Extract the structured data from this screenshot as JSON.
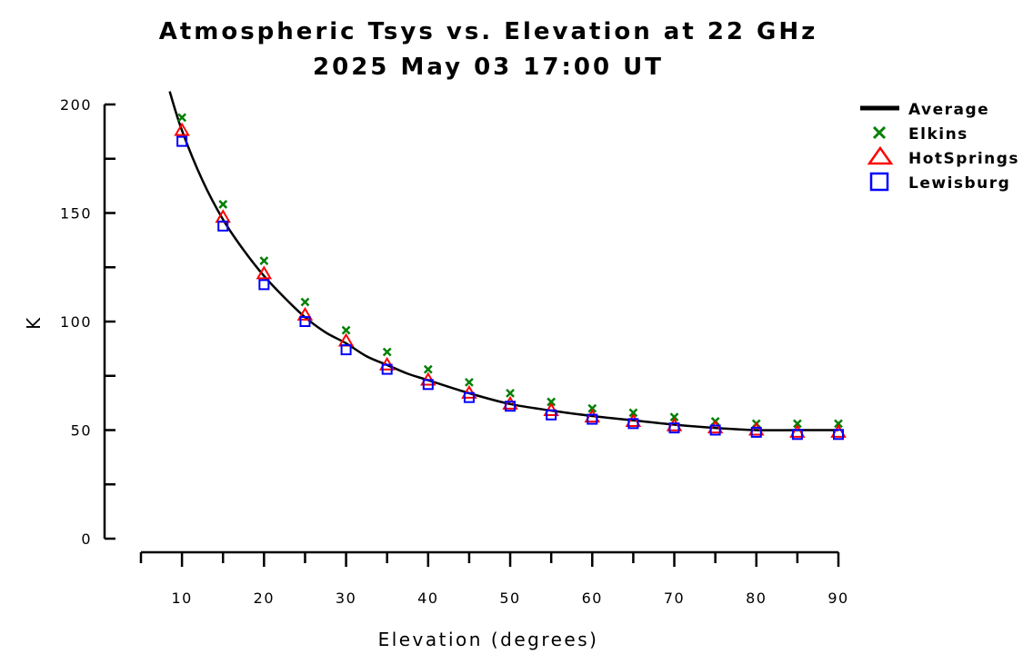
{
  "chart_data": {
    "type": "scatter",
    "title": "Atmospheric Tsys vs. Elevation at 22 GHz",
    "subtitle": "2025 May 03 17:00 UT",
    "xlabel": "Elevation (degrees)",
    "ylabel": "K",
    "xlim": [
      5,
      90
    ],
    "ylim": [
      0,
      200
    ],
    "xticks": [
      10,
      20,
      30,
      40,
      50,
      60,
      70,
      80,
      90
    ],
    "xtick_labels": [
      "10",
      "20",
      "30",
      "40",
      "50",
      "60",
      "70",
      "80",
      "90"
    ],
    "yticks": [
      0,
      50,
      100,
      150,
      200
    ],
    "ytick_labels": [
      "0",
      "50",
      "100",
      "150",
      "200"
    ],
    "grid": false,
    "legend_position": "top-right",
    "x": [
      10,
      15,
      20,
      25,
      30,
      35,
      40,
      45,
      50,
      55,
      60,
      65,
      70,
      75,
      80,
      85,
      90
    ],
    "series": [
      {
        "name": "Average",
        "style": "line",
        "color": "#000000",
        "x": [
          8.5,
          10,
          12.5,
          15,
          17.5,
          20,
          22.5,
          25,
          27.5,
          30,
          32.5,
          35,
          37.5,
          40,
          45,
          50,
          55,
          60,
          65,
          70,
          75,
          80,
          85,
          90
        ],
        "values": [
          206,
          188,
          165,
          147,
          133,
          121,
          111,
          102,
          95,
          90,
          84,
          80,
          76,
          73,
          67,
          62,
          59,
          56.5,
          54.5,
          52.5,
          51,
          50,
          50,
          50
        ]
      },
      {
        "name": "Elkins",
        "style": "x-marker",
        "color": "#008000",
        "values": [
          194,
          154,
          128,
          109,
          96,
          86,
          78,
          72,
          67,
          63,
          60,
          58,
          56,
          54,
          53,
          53,
          53
        ]
      },
      {
        "name": "HotSprings",
        "style": "triangle-marker",
        "color": "#ff0000",
        "values": [
          188,
          148,
          122,
          103,
          91,
          80,
          73,
          67,
          62,
          59,
          56,
          54,
          52,
          51,
          50,
          49,
          49
        ]
      },
      {
        "name": "Lewisburg",
        "style": "square-marker",
        "color": "#0000ff",
        "values": [
          183,
          144,
          117,
          100,
          87,
          78,
          71,
          65,
          61,
          57,
          55,
          53,
          51,
          50,
          49,
          48,
          48
        ]
      }
    ]
  }
}
